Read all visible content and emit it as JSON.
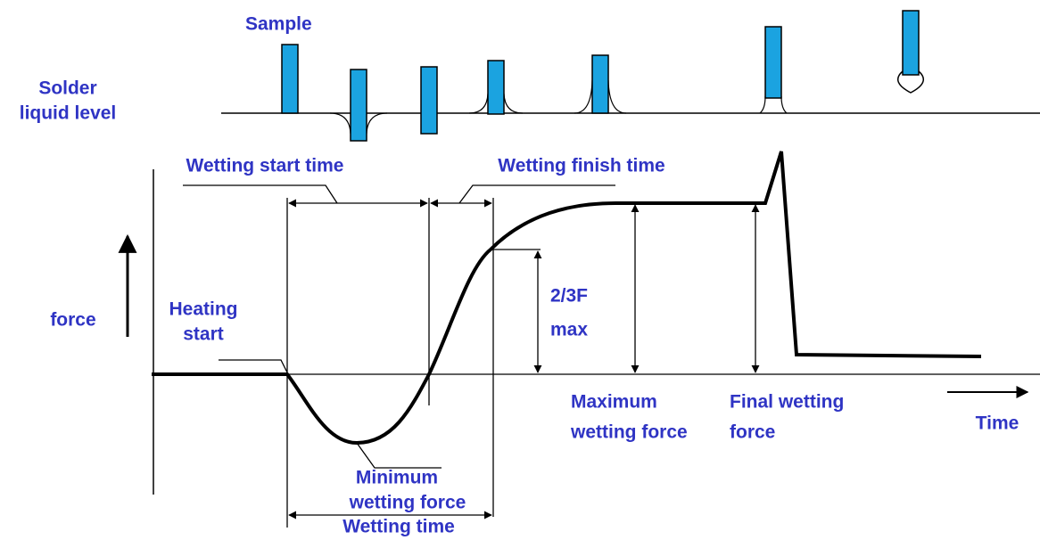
{
  "labels": {
    "sample": "Sample",
    "solder_level": [
      "Solder",
      "liquid level"
    ],
    "wetting_start_time": "Wetting start time",
    "wetting_finish_time": "Wetting finish time",
    "force": "force",
    "heating_start": [
      "Heating",
      "start"
    ],
    "two_thirds_fmax": [
      "2/3F",
      "max"
    ],
    "maximum_wetting_force": [
      "Maximum",
      "wetting force"
    ],
    "final_wetting_force": [
      "Final wetting",
      "force"
    ],
    "time": "Time",
    "minimum_wetting_force": [
      "Minimum",
      "wetting force"
    ],
    "wetting_time": "Wetting time"
  }
}
